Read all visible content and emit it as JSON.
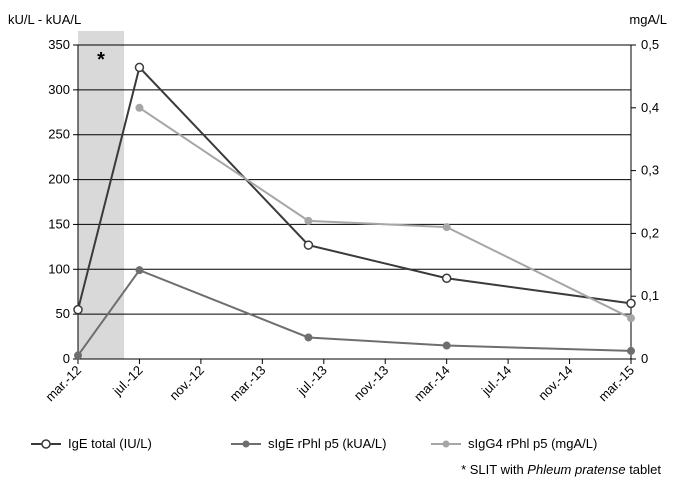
{
  "chart_data": {
    "type": "line",
    "y_left_label": "kU/L - kUA/L",
    "y_right_label": "mgA/L",
    "y_left_range": [
      0,
      350
    ],
    "y_left_ticks": [
      "0",
      "50",
      "100",
      "150",
      "200",
      "250",
      "300",
      "350"
    ],
    "y_right_range": [
      0,
      0.5
    ],
    "y_right_ticks": [
      "0",
      "0,1",
      "0,2",
      "0,3",
      "0,4",
      "0,5"
    ],
    "x_range": [
      "2012-03",
      "2015-03"
    ],
    "x_ticks": [
      "mar.-12",
      "jul.-12",
      "nov.-12",
      "mar.-13",
      "jul.-13",
      "nov.-13",
      "mar.-14",
      "jul.-14",
      "nov.-14",
      "mar.-15"
    ],
    "grid": "horizontal",
    "legend_position": "bottom",
    "shaded_region": {
      "x_start": "2012-03",
      "x_end": "2012-06",
      "marker": "*",
      "color": "#d9d9d9"
    },
    "series": [
      {
        "name": "IgE total (IU/L)",
        "axis": "left",
        "color": "#3a3a3a",
        "marker": "open-circle",
        "points": [
          {
            "x": "2012-03",
            "y": 55
          },
          {
            "x": "2012-07",
            "y": 325
          },
          {
            "x": "2013-06",
            "y": 127
          },
          {
            "x": "2014-03",
            "y": 90
          },
          {
            "x": "2015-03",
            "y": 62
          }
        ]
      },
      {
        "name": "sIgE rPhl p5 (kUA/L)",
        "axis": "left",
        "color": "#6e6e6e",
        "marker": "filled-circle",
        "points": [
          {
            "x": "2012-03",
            "y": 4
          },
          {
            "x": "2012-07",
            "y": 99
          },
          {
            "x": "2013-06",
            "y": 24
          },
          {
            "x": "2014-03",
            "y": 15
          },
          {
            "x": "2015-03",
            "y": 9
          }
        ]
      },
      {
        "name": "sIgG4 rPhl p5 (mgA/L)",
        "axis": "right",
        "color": "#a6a6a6",
        "marker": "filled-circle",
        "points": [
          {
            "x": "2012-07",
            "y": 0.4
          },
          {
            "x": "2013-06",
            "y": 0.22
          },
          {
            "x": "2014-03",
            "y": 0.21
          },
          {
            "x": "2015-03",
            "y": 0.065
          }
        ]
      }
    ],
    "footnote": {
      "prefix": "* SLIT with ",
      "italic": "Phleum pratense",
      "suffix": " tablet"
    }
  }
}
